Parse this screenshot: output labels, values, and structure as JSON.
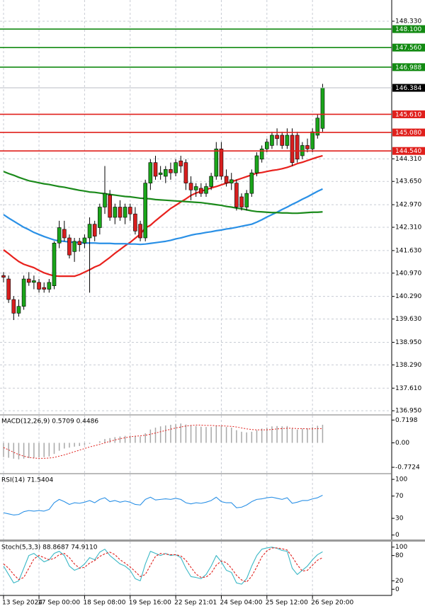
{
  "chart_data": [
    {
      "type": "candlestick",
      "categories": [
        "13 Sep 2024",
        null,
        null,
        null,
        null,
        null,
        null,
        "17 Sep 00:00",
        null,
        null,
        null,
        null,
        null,
        null,
        null,
        null,
        "18 Sep 08:00",
        null,
        null,
        null,
        null,
        null,
        null,
        null,
        null,
        "19 Sep 16:00",
        null,
        null,
        null,
        null,
        null,
        null,
        null,
        null,
        "22 Sep 21:01",
        null,
        null,
        null,
        null,
        null,
        null,
        null,
        null,
        "24 Sep 04:00",
        null,
        null,
        null,
        null,
        null,
        null,
        null,
        null,
        "25 Sep 12:00",
        null,
        null,
        null,
        null,
        null,
        null,
        null,
        null,
        "26 Sep 20:00",
        null,
        null
      ],
      "open": [
        140.9,
        140.8,
        140.2,
        139.8,
        140.0,
        140.8,
        140.7,
        140.7,
        140.55,
        140.5,
        140.6,
        141.85,
        142.25,
        142.0,
        141.6,
        141.9,
        141.85,
        142.0,
        142.4,
        142.3,
        142.9,
        143.25,
        142.6,
        142.9,
        142.6,
        142.9,
        142.7,
        142.4,
        142.0,
        143.6,
        144.2,
        143.85,
        143.8,
        144.0,
        143.9,
        144.25,
        144.2,
        143.6,
        143.4,
        143.45,
        143.3,
        143.5,
        143.8,
        144.6,
        143.8,
        143.6,
        143.6,
        143.2,
        142.9,
        143.3,
        143.9,
        144.3,
        144.6,
        144.7,
        145.0,
        145.0,
        144.7,
        145.0,
        145.0,
        144.4,
        144.7,
        144.6,
        145.0,
        145.2
      ],
      "high": [
        141.0,
        140.9,
        140.3,
        140.2,
        140.9,
        141.0,
        140.9,
        140.8,
        140.7,
        140.8,
        141.9,
        142.5,
        142.5,
        142.1,
        142.0,
        142.0,
        142.1,
        142.6,
        142.5,
        143.0,
        144.1,
        143.4,
        143.0,
        143.1,
        143.0,
        143.0,
        142.9,
        142.5,
        143.7,
        144.3,
        144.4,
        144.1,
        144.1,
        144.2,
        144.3,
        144.4,
        144.3,
        143.8,
        143.6,
        143.6,
        143.6,
        143.9,
        144.8,
        144.8,
        144.0,
        143.9,
        143.7,
        143.3,
        143.4,
        144.0,
        144.5,
        144.7,
        144.9,
        145.1,
        145.2,
        145.1,
        145.2,
        145.2,
        145.1,
        144.8,
        144.9,
        145.2,
        145.6,
        146.5
      ],
      "low": [
        140.7,
        140.1,
        139.6,
        139.7,
        139.9,
        140.6,
        140.5,
        140.4,
        140.4,
        140.4,
        140.5,
        141.7,
        141.9,
        141.4,
        141.3,
        141.6,
        141.7,
        140.4,
        141.9,
        142.1,
        142.7,
        142.5,
        142.4,
        142.5,
        142.4,
        142.5,
        142.1,
        141.9,
        141.9,
        143.4,
        143.7,
        143.7,
        143.6,
        143.7,
        143.8,
        143.9,
        143.4,
        143.1,
        143.2,
        143.2,
        143.2,
        143.4,
        143.7,
        143.7,
        143.5,
        143.4,
        142.8,
        142.8,
        142.8,
        143.2,
        143.8,
        144.2,
        144.5,
        144.6,
        144.7,
        144.6,
        144.6,
        144.1,
        144.2,
        144.3,
        144.5,
        144.5,
        144.9,
        145.1
      ],
      "close": [
        140.85,
        140.2,
        139.8,
        140.0,
        140.8,
        140.7,
        140.75,
        140.5,
        140.5,
        140.7,
        141.85,
        142.3,
        142.0,
        141.5,
        141.9,
        141.8,
        142.0,
        142.4,
        142.05,
        142.9,
        143.3,
        142.6,
        142.9,
        142.6,
        142.9,
        142.7,
        142.2,
        142.0,
        143.6,
        144.2,
        143.8,
        143.9,
        144.0,
        143.9,
        144.2,
        144.1,
        143.6,
        143.4,
        143.5,
        143.3,
        143.5,
        143.8,
        144.6,
        143.8,
        143.6,
        143.7,
        142.9,
        142.9,
        143.3,
        143.9,
        144.4,
        144.6,
        144.8,
        145.0,
        144.9,
        144.7,
        145.0,
        144.2,
        144.3,
        144.7,
        144.6,
        145.1,
        145.5,
        146.384
      ],
      "up_color": "#1aa51a",
      "down_color": "#d81e1e",
      "series": [
        {
          "color": "#e8211d",
          "values": [
            141.65,
            141.54,
            141.42,
            141.31,
            141.23,
            141.18,
            141.13,
            141.05,
            140.98,
            140.93,
            140.89,
            140.88,
            140.88,
            140.88,
            140.88,
            140.93,
            141.0,
            141.07,
            141.15,
            141.21,
            141.32,
            141.43,
            141.55,
            141.66,
            141.77,
            141.87,
            141.99,
            142.11,
            142.29,
            142.37,
            142.5,
            142.62,
            142.74,
            142.86,
            142.95,
            143.05,
            143.14,
            143.24,
            143.31,
            143.36,
            143.41,
            143.46,
            143.5,
            143.55,
            143.6,
            143.64,
            143.69,
            143.74,
            143.79,
            143.84,
            143.89,
            143.91,
            143.94,
            143.97,
            143.99,
            144.02,
            144.06,
            144.11,
            144.17,
            144.21,
            144.26,
            144.31,
            144.36,
            144.4
          ]
        },
        {
          "color": "#2a90e6",
          "values": [
            142.68,
            142.58,
            142.49,
            142.4,
            142.31,
            142.24,
            142.16,
            142.1,
            142.04,
            141.99,
            141.94,
            141.91,
            141.9,
            141.88,
            141.87,
            141.86,
            141.85,
            141.85,
            141.85,
            141.84,
            141.84,
            141.84,
            141.83,
            141.83,
            141.83,
            141.82,
            141.82,
            141.81,
            141.82,
            141.84,
            141.86,
            141.88,
            141.9,
            141.93,
            141.97,
            142.0,
            142.04,
            142.08,
            142.11,
            142.13,
            142.16,
            142.18,
            142.21,
            142.23,
            142.26,
            142.28,
            142.31,
            142.34,
            142.37,
            142.4,
            142.46,
            142.53,
            142.61,
            142.68,
            142.75,
            142.83,
            142.9,
            142.98,
            143.05,
            143.13,
            143.2,
            143.28,
            143.36,
            143.43
          ]
        },
        {
          "color": "#1b8a1b",
          "values": [
            143.94,
            143.88,
            143.83,
            143.77,
            143.72,
            143.67,
            143.64,
            143.61,
            143.58,
            143.56,
            143.53,
            143.5,
            143.48,
            143.45,
            143.42,
            143.39,
            143.37,
            143.34,
            143.33,
            143.31,
            143.29,
            143.27,
            143.25,
            143.23,
            143.21,
            143.2,
            143.18,
            143.16,
            143.15,
            143.14,
            143.12,
            143.11,
            143.1,
            143.09,
            143.08,
            143.07,
            143.06,
            143.05,
            143.04,
            143.03,
            143.01,
            142.99,
            142.97,
            142.95,
            142.92,
            142.9,
            142.87,
            142.85,
            142.82,
            142.79,
            142.77,
            142.76,
            142.75,
            142.74,
            142.74,
            142.73,
            142.73,
            142.72,
            142.72,
            142.73,
            142.74,
            142.75,
            142.75,
            142.76
          ]
        }
      ],
      "levels": [
        {
          "value": 148.1,
          "label": "148.100",
          "color": "#128a12"
        },
        {
          "value": 147.56,
          "label": "147.560",
          "color": "#128a12"
        },
        {
          "value": 146.988,
          "label": "146.988",
          "color": "#128a12"
        },
        {
          "value": 145.61,
          "label": "145.610",
          "color": "#e0201c"
        },
        {
          "value": 145.08,
          "label": "145.080",
          "color": "#e0201c"
        },
        {
          "value": 144.54,
          "label": "144.540",
          "color": "#e0201c"
        }
      ],
      "last_price": 146.384,
      "ylim": [
        136.85,
        148.95
      ],
      "yticks": [
        {
          "value": 148.33,
          "label": "148.330"
        },
        {
          "value": 144.31,
          "label": "144.310"
        },
        {
          "value": 143.65,
          "label": "143.650"
        },
        {
          "value": 142.97,
          "label": "142.970"
        },
        {
          "value": 142.31,
          "label": "142.310"
        },
        {
          "value": 141.63,
          "label": "141.630"
        },
        {
          "value": 140.97,
          "label": "140.970"
        },
        {
          "value": 140.29,
          "label": "140.290"
        },
        {
          "value": 139.63,
          "label": "139.630"
        },
        {
          "value": 138.95,
          "label": "138.950"
        },
        {
          "value": 138.29,
          "label": "138.290"
        },
        {
          "value": 137.61,
          "label": "137.610"
        },
        {
          "value": 136.95,
          "label": "136.950"
        }
      ],
      "grid": true
    },
    {
      "type": "macd",
      "title": "MACD(12,26,9) 0.5709 0.4486",
      "histogram": [
        -0.45,
        -0.47,
        -0.5,
        -0.52,
        -0.5,
        -0.48,
        -0.47,
        -0.46,
        -0.45,
        -0.43,
        -0.35,
        -0.25,
        -0.18,
        -0.15,
        -0.12,
        -0.1,
        -0.07,
        -0.03,
        0.0,
        0.05,
        0.12,
        0.15,
        0.18,
        0.2,
        0.22,
        0.23,
        0.22,
        0.2,
        0.3,
        0.42,
        0.48,
        0.52,
        0.55,
        0.57,
        0.6,
        0.61,
        0.58,
        0.55,
        0.53,
        0.51,
        0.5,
        0.5,
        0.55,
        0.53,
        0.5,
        0.48,
        0.4,
        0.35,
        0.33,
        0.35,
        0.4,
        0.45,
        0.48,
        0.52,
        0.53,
        0.52,
        0.53,
        0.45,
        0.42,
        0.45,
        0.46,
        0.5,
        0.54,
        0.5709
      ],
      "signal": [
        -0.15,
        -0.22,
        -0.3,
        -0.37,
        -0.42,
        -0.46,
        -0.48,
        -0.49,
        -0.49,
        -0.48,
        -0.46,
        -0.42,
        -0.38,
        -0.33,
        -0.28,
        -0.23,
        -0.18,
        -0.13,
        -0.09,
        -0.05,
        0.0,
        0.05,
        0.09,
        0.13,
        0.16,
        0.19,
        0.21,
        0.22,
        0.24,
        0.27,
        0.31,
        0.35,
        0.39,
        0.43,
        0.47,
        0.5,
        0.53,
        0.55,
        0.56,
        0.56,
        0.55,
        0.55,
        0.54,
        0.54,
        0.53,
        0.52,
        0.5,
        0.47,
        0.44,
        0.42,
        0.41,
        0.41,
        0.41,
        0.42,
        0.44,
        0.45,
        0.46,
        0.46,
        0.45,
        0.45,
        0.44,
        0.44,
        0.45,
        0.4486
      ],
      "histogram_color": "#a8a8a8",
      "signal_color": "#e0201c",
      "ylim": [
        -0.95,
        0.86
      ],
      "yticks": [
        0.7198,
        {
          "value": 0,
          "label": "0.00"
        },
        -0.7724
      ]
    },
    {
      "type": "line",
      "title": "RSI(14) 71.5404",
      "series": [
        {
          "color": "#2a90e6",
          "values": [
            40,
            38,
            36,
            37,
            42,
            44,
            43,
            44,
            43,
            46,
            58,
            64,
            60,
            55,
            58,
            57,
            59,
            62,
            58,
            64,
            67,
            60,
            62,
            59,
            61,
            59,
            55,
            54,
            64,
            68,
            63,
            64,
            65,
            64,
            66,
            64,
            58,
            56,
            58,
            57,
            59,
            62,
            68,
            60,
            58,
            58,
            49,
            50,
            54,
            60,
            64,
            65,
            67,
            68,
            66,
            64,
            67,
            57,
            59,
            62,
            62,
            65,
            67,
            71.5404
          ]
        }
      ],
      "ylim": [
        -8,
        109
      ],
      "yticks": [
        100,
        70,
        30,
        0
      ]
    },
    {
      "type": "line",
      "title": "Stoch(5,3,3) 88.8687 74.9110",
      "series": [
        {
          "color": "#3bb8c6",
          "values": [
            55,
            35,
            15,
            20,
            50,
            80,
            85,
            75,
            65,
            70,
            85,
            90,
            80,
            55,
            45,
            50,
            60,
            75,
            70,
            88,
            95,
            80,
            70,
            60,
            55,
            45,
            25,
            20,
            60,
            90,
            85,
            80,
            85,
            80,
            82,
            75,
            50,
            30,
            28,
            25,
            35,
            55,
            80,
            65,
            45,
            40,
            15,
            12,
            25,
            55,
            80,
            95,
            98,
            100,
            97,
            92,
            90,
            50,
            35,
            45,
            55,
            70,
            82,
            88.8687
          ]
        },
        {
          "color": "#e0201c",
          "dashed": true,
          "values": [
            60,
            50,
            35,
            23,
            28,
            50,
            72,
            80,
            75,
            70,
            73,
            82,
            85,
            75,
            60,
            50,
            52,
            62,
            68,
            78,
            84,
            88,
            82,
            70,
            62,
            53,
            42,
            30,
            35,
            57,
            78,
            85,
            83,
            82,
            82,
            79,
            69,
            52,
            36,
            28,
            29,
            38,
            57,
            67,
            63,
            50,
            33,
            22,
            17,
            31,
            53,
            77,
            91,
            98,
            98,
            96,
            93,
            77,
            58,
            43,
            45,
            57,
            69,
            74.911
          ]
        }
      ],
      "ylim": [
        -13,
        113
      ],
      "yticks": [
        100,
        80,
        20,
        0
      ]
    }
  ]
}
